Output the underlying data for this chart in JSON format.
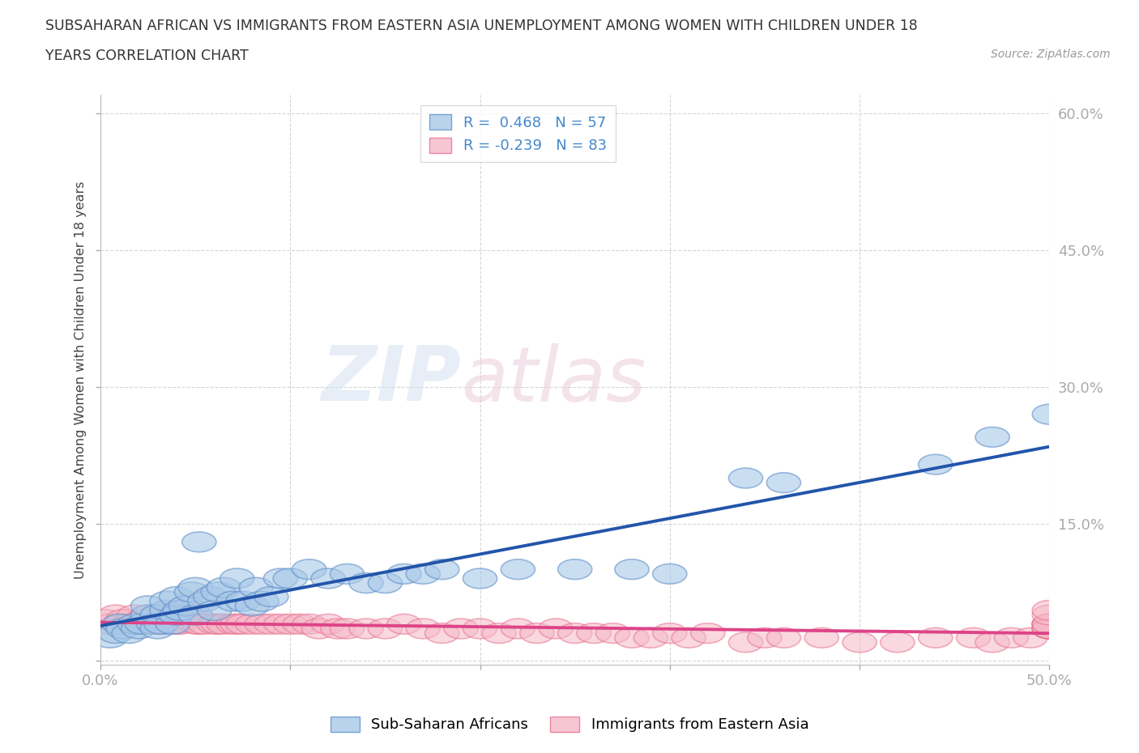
{
  "title_line1": "SUBSAHARAN AFRICAN VS IMMIGRANTS FROM EASTERN ASIA UNEMPLOYMENT AMONG WOMEN WITH CHILDREN UNDER 18",
  "title_line2": "YEARS CORRELATION CHART",
  "source_text": "Source: ZipAtlas.com",
  "ylabel": "Unemployment Among Women with Children Under 18 years",
  "xlim": [
    0.0,
    0.5
  ],
  "ylim": [
    -0.005,
    0.62
  ],
  "xticks": [
    0.0,
    0.1,
    0.2,
    0.3,
    0.4,
    0.5
  ],
  "yticks": [
    0.0,
    0.15,
    0.3,
    0.45,
    0.6
  ],
  "blue_R": 0.468,
  "blue_N": 57,
  "pink_R": -0.239,
  "pink_N": 83,
  "blue_color": "#a8c8e8",
  "pink_color": "#f5b8c8",
  "blue_edge_color": "#6090c8",
  "pink_edge_color": "#e87090",
  "blue_line_color": "#2255aa",
  "pink_line_color": "#dd4488",
  "legend_label_blue": "Sub-Saharan Africans",
  "legend_label_pink": "Immigrants from Eastern Asia",
  "watermark_zip": "ZIP",
  "watermark_atlas": "atlas",
  "blue_x": [
    0.005,
    0.008,
    0.01,
    0.012,
    0.015,
    0.018,
    0.02,
    0.022,
    0.025,
    0.025,
    0.028,
    0.03,
    0.03,
    0.032,
    0.035,
    0.035,
    0.038,
    0.04,
    0.04,
    0.042,
    0.045,
    0.048,
    0.05,
    0.05,
    0.052,
    0.055,
    0.058,
    0.06,
    0.062,
    0.065,
    0.07,
    0.072,
    0.075,
    0.08,
    0.082,
    0.085,
    0.09,
    0.095,
    0.1,
    0.11,
    0.12,
    0.13,
    0.14,
    0.15,
    0.16,
    0.17,
    0.18,
    0.2,
    0.22,
    0.25,
    0.28,
    0.3,
    0.34,
    0.36,
    0.44,
    0.47,
    0.5
  ],
  "blue_y": [
    0.025,
    0.03,
    0.04,
    0.035,
    0.03,
    0.04,
    0.035,
    0.04,
    0.05,
    0.06,
    0.04,
    0.05,
    0.035,
    0.04,
    0.055,
    0.065,
    0.04,
    0.05,
    0.07,
    0.055,
    0.06,
    0.075,
    0.05,
    0.08,
    0.13,
    0.065,
    0.07,
    0.055,
    0.075,
    0.08,
    0.065,
    0.09,
    0.065,
    0.06,
    0.08,
    0.065,
    0.07,
    0.09,
    0.09,
    0.1,
    0.09,
    0.095,
    0.085,
    0.085,
    0.095,
    0.095,
    0.1,
    0.09,
    0.1,
    0.1,
    0.1,
    0.095,
    0.2,
    0.195,
    0.215,
    0.245,
    0.27
  ],
  "pink_x": [
    0.002,
    0.005,
    0.008,
    0.01,
    0.012,
    0.015,
    0.018,
    0.02,
    0.022,
    0.025,
    0.028,
    0.03,
    0.032,
    0.035,
    0.035,
    0.038,
    0.04,
    0.04,
    0.042,
    0.045,
    0.05,
    0.05,
    0.052,
    0.055,
    0.06,
    0.062,
    0.065,
    0.07,
    0.072,
    0.075,
    0.08,
    0.085,
    0.09,
    0.095,
    0.1,
    0.105,
    0.11,
    0.115,
    0.12,
    0.125,
    0.13,
    0.14,
    0.15,
    0.16,
    0.17,
    0.18,
    0.19,
    0.2,
    0.21,
    0.22,
    0.23,
    0.24,
    0.25,
    0.26,
    0.27,
    0.28,
    0.29,
    0.3,
    0.31,
    0.32,
    0.34,
    0.35,
    0.36,
    0.38,
    0.4,
    0.42,
    0.44,
    0.46,
    0.47,
    0.48,
    0.49,
    0.5,
    0.5,
    0.5,
    0.5,
    0.5,
    0.5,
    0.5,
    0.5,
    0.5,
    0.5,
    0.5,
    0.5
  ],
  "pink_y": [
    0.045,
    0.04,
    0.05,
    0.04,
    0.045,
    0.04,
    0.05,
    0.04,
    0.045,
    0.05,
    0.04,
    0.05,
    0.04,
    0.05,
    0.04,
    0.05,
    0.04,
    0.05,
    0.04,
    0.05,
    0.04,
    0.05,
    0.04,
    0.04,
    0.04,
    0.04,
    0.04,
    0.04,
    0.04,
    0.04,
    0.04,
    0.04,
    0.04,
    0.04,
    0.04,
    0.04,
    0.04,
    0.035,
    0.04,
    0.035,
    0.035,
    0.035,
    0.035,
    0.04,
    0.035,
    0.03,
    0.035,
    0.035,
    0.03,
    0.035,
    0.03,
    0.035,
    0.03,
    0.03,
    0.03,
    0.025,
    0.025,
    0.03,
    0.025,
    0.03,
    0.02,
    0.025,
    0.025,
    0.025,
    0.02,
    0.02,
    0.025,
    0.025,
    0.02,
    0.025,
    0.025,
    0.035,
    0.035,
    0.04,
    0.035,
    0.04,
    0.035,
    0.04,
    0.04,
    0.035,
    0.04,
    0.05,
    0.055
  ]
}
